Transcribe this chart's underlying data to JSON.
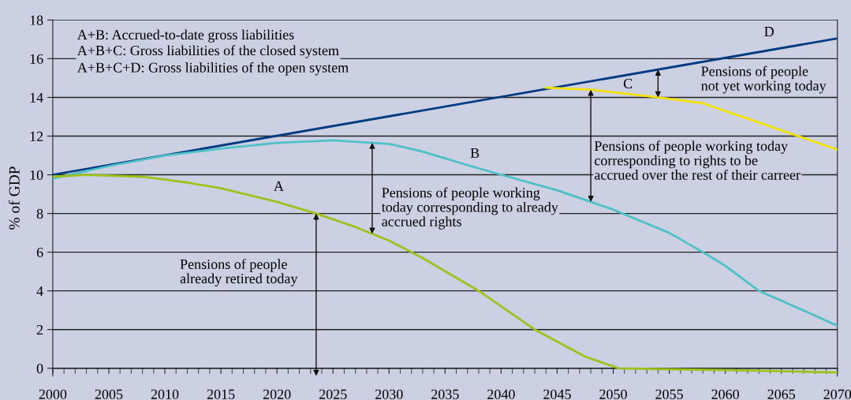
{
  "chart_data": {
    "type": "line",
    "ylabel": "% of GDP",
    "xlim": [
      2000,
      2070
    ],
    "xticks": [
      2000,
      2005,
      2010,
      2015,
      2020,
      2025,
      2030,
      2035,
      2040,
      2045,
      2050,
      2055,
      2060,
      2065,
      2070
    ],
    "ylim": [
      -0.4,
      18
    ],
    "yticks": [
      0,
      2,
      4,
      6,
      8,
      10,
      12,
      14,
      16,
      18
    ],
    "grid": "y",
    "legend": false,
    "marker": "none",
    "line_style": "solid",
    "series": [
      {
        "color": "#003a80",
        "x": [
          2000,
          2070
        ],
        "values": [
          10.0,
          17.05
        ]
      },
      {
        "color": "#f2e200",
        "x": [
          2044,
          2048,
          2054,
          2058,
          2062,
          2066,
          2070
        ],
        "values": [
          14.5,
          14.4,
          14.0,
          13.7,
          12.9,
          12.1,
          11.3
        ]
      },
      {
        "color": "#4dc0c8",
        "x": [
          2000,
          2005,
          2010,
          2015,
          2020,
          2025,
          2030,
          2033,
          2037,
          2040,
          2045,
          2050,
          2055,
          2058,
          2060,
          2063,
          2065,
          2070
        ],
        "values": [
          9.8,
          10.45,
          11.0,
          11.35,
          11.65,
          11.78,
          11.6,
          11.2,
          10.5,
          10.0,
          9.2,
          8.2,
          7.0,
          6.0,
          5.3,
          4.0,
          3.5,
          2.2
        ]
      },
      {
        "color": "#9cc31c",
        "x": [
          2000,
          2003,
          2008,
          2012,
          2015,
          2020,
          2023.5,
          2027,
          2030,
          2033,
          2038,
          2043,
          2047.5,
          2050.5,
          2055,
          2060,
          2065,
          2070
        ],
        "values": [
          9.9,
          10.0,
          9.9,
          9.6,
          9.3,
          8.6,
          8.0,
          7.3,
          6.6,
          5.7,
          4.0,
          2.0,
          0.6,
          0.0,
          -0.05,
          -0.1,
          -0.15,
          -0.22
        ]
      }
    ],
    "annotations": [
      "A+B: Accrued-to-date gross liabilities",
      "A+B+C: Gross liabilities of the closed system",
      "A+B+C+D: Gross liabilities of the open system",
      "A",
      "B",
      "C",
      "D",
      "Pensions of people\nalready retired today",
      "Pensions of people working\ntoday corresponding to already\naccrued rights",
      "Pensions of people working today\ncorresponding to rights to be\naccrued over the rest of their carreer",
      "Pensions of people\nnot yet working today"
    ]
  }
}
